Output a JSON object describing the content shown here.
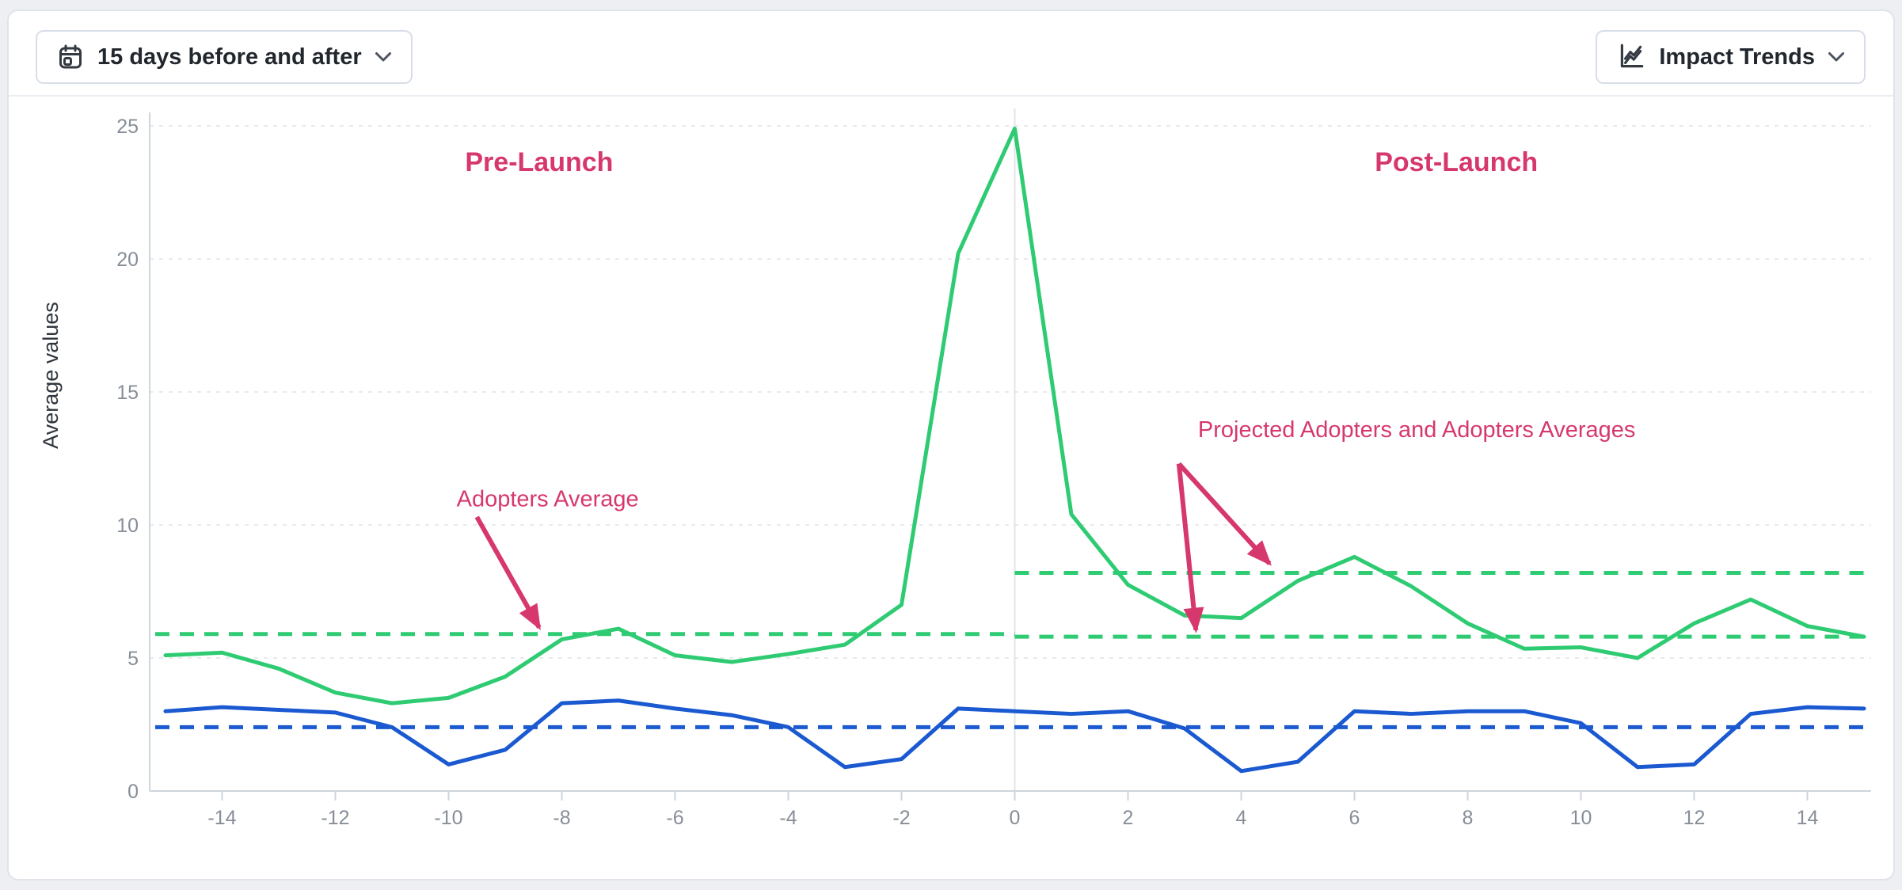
{
  "header": {
    "range_button": {
      "label": "15 days before and after"
    },
    "trends_button": {
      "label": "Impact Trends"
    }
  },
  "chart_data": {
    "type": "line",
    "title": "",
    "ylabel": "Average values",
    "xlim": [
      -15,
      15
    ],
    "ylim": [
      0,
      26.5
    ],
    "x_ticks": [
      -14,
      -12,
      -10,
      -8,
      -6,
      -4,
      -2,
      0,
      2,
      4,
      6,
      8,
      10,
      12,
      14
    ],
    "y_ticks": [
      0,
      5,
      10,
      15,
      20,
      25
    ],
    "grid": "horizontal-dashed",
    "zero_line_x": 0,
    "legend_position": "none",
    "x": [
      -15,
      -14,
      -13,
      -12,
      -11,
      -10,
      -9,
      -8,
      -7,
      -6,
      -5,
      -4,
      -3,
      -2,
      -1,
      0,
      1,
      2,
      3,
      4,
      5,
      6,
      7,
      8,
      9,
      10,
      11,
      12,
      13,
      14,
      15
    ],
    "series": [
      {
        "name": "Adopters",
        "color": "#2fcb73",
        "values": [
          5.1,
          5.2,
          4.6,
          3.7,
          3.3,
          3.5,
          4.3,
          5.7,
          6.1,
          5.1,
          4.85,
          5.15,
          5.5,
          7.0,
          20.2,
          24.9,
          10.4,
          7.75,
          6.6,
          6.5,
          7.9,
          8.8,
          7.7,
          6.3,
          5.35,
          5.4,
          5.0,
          6.3,
          7.2,
          6.2,
          5.8
        ]
      },
      {
        "name": "Projected Adopters",
        "color": "#1b59d1",
        "values": [
          3.0,
          3.15,
          3.05,
          2.95,
          2.4,
          1.0,
          1.55,
          3.3,
          3.4,
          3.1,
          2.85,
          2.4,
          0.9,
          1.2,
          3.1,
          3.0,
          2.9,
          3.0,
          2.35,
          0.75,
          1.1,
          3.0,
          2.9,
          3.0,
          3.0,
          2.55,
          0.9,
          1.0,
          2.9,
          3.15,
          3.1
        ]
      }
    ],
    "average_lines": [
      {
        "name": "adopters-average-pre-launch",
        "color": "#2fcb73",
        "value": 5.9,
        "x_start": -15,
        "x_end": 0
      },
      {
        "name": "adopters-average-post-launch",
        "color": "#2fcb73",
        "value": 8.2,
        "x_start": 0,
        "x_end": 15
      },
      {
        "name": "projected-adopters-average-post-launch",
        "color": "#2fcb73",
        "value": 5.8,
        "x_start": 0,
        "x_end": 15
      },
      {
        "name": "projected-adopters-average",
        "color": "#1b59d1",
        "value": 2.4,
        "x_start": -15,
        "x_end": 15
      }
    ],
    "annotations": {
      "color": "#d6386e",
      "labels": [
        {
          "id": "pre-launch",
          "text": "Pre-Launch",
          "x": -8.4,
          "v": 23.6,
          "bold": true,
          "size": 34
        },
        {
          "id": "post-launch",
          "text": "Post-Launch",
          "x": 7.8,
          "v": 23.6,
          "bold": true,
          "size": 34
        },
        {
          "id": "adopters-average",
          "text": "Adopters Average",
          "x": -8.25,
          "v": 11.0,
          "bold": false,
          "size": 29
        },
        {
          "id": "projected-adopters-averages",
          "text": "Projected Adopters and Adopters Averages",
          "x": 7.1,
          "v": 13.6,
          "bold": false,
          "size": 29
        }
      ],
      "arrows": [
        {
          "from": {
            "x": -9.5,
            "v": 10.3
          },
          "to": {
            "x": -8.4,
            "v": 6.15
          }
        },
        {
          "from": {
            "x": 2.9,
            "v": 12.3
          },
          "to": {
            "x": 4.5,
            "v": 8.55
          }
        },
        {
          "from": {
            "x": 2.9,
            "v": 12.3
          },
          "to": {
            "x": 3.2,
            "v": 6.05
          }
        }
      ]
    },
    "axis_colors": {
      "axis_line": "#cdd5dd",
      "grid_line": "#e7eaee",
      "zero_line": "#e1e4e9",
      "tick_text": "#878e98",
      "ylabel_text": "#2f353d"
    }
  }
}
